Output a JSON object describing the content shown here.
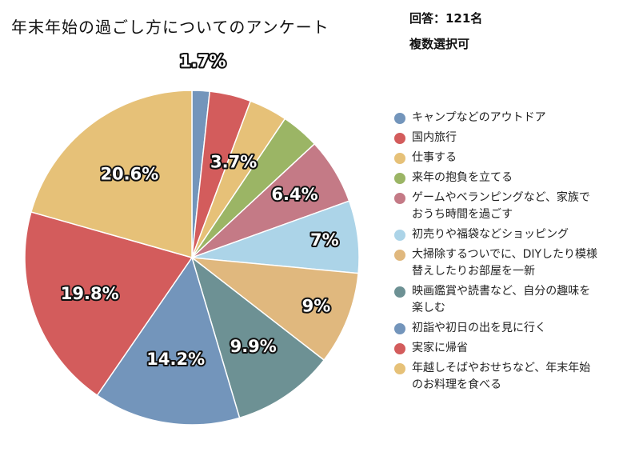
{
  "chart_data": {
    "type": "pie",
    "title": "年末年始の過ごし方についてのアンケート",
    "respondents": "回答：121名",
    "note": "複数選択可",
    "slices": [
      {
        "name": "キャンプなどのアウトドア",
        "value": 1.7,
        "label": "1.7%",
        "color": "#7395bb"
      },
      {
        "name": "国内旅行",
        "value": 4.0,
        "label": null,
        "color": "#d35c5c"
      },
      {
        "name": "仕事する",
        "value": 3.7,
        "label": "3.7%",
        "color": "#e6c178"
      },
      {
        "name": "来年の抱負を立てる",
        "value": 3.7,
        "label": null,
        "color": "#9bb565"
      },
      {
        "name": "ゲームやベランピングなど、家族でおうち時間を過ごす",
        "value": 6.4,
        "label": "6.4%",
        "color": "#c47a86"
      },
      {
        "name": "初売りや福袋などショッピング",
        "value": 7,
        "label": "7%",
        "color": "#acd4e8"
      },
      {
        "name": "大掃除するついでに、DIYしたり模様替えしたりお部屋を一新",
        "value": 9,
        "label": "9%",
        "color": "#e0b87e"
      },
      {
        "name": "映画鑑賞や読書など、自分の趣味を楽しむ",
        "value": 9.9,
        "label": "9.9%",
        "color": "#6d9194"
      },
      {
        "name": "初詣や初日の出を見に行く",
        "value": 14.2,
        "label": "14.2%",
        "color": "#7395bb"
      },
      {
        "name": "実家に帰省",
        "value": 19.8,
        "label": "19.8%",
        "color": "#d35c5c"
      },
      {
        "name": "年越しそばやおせちなど、年末年始のお料理を食べる",
        "value": 20.6,
        "label": "20.6%",
        "color": "#e6c178"
      }
    ],
    "legend_placement": "right"
  }
}
